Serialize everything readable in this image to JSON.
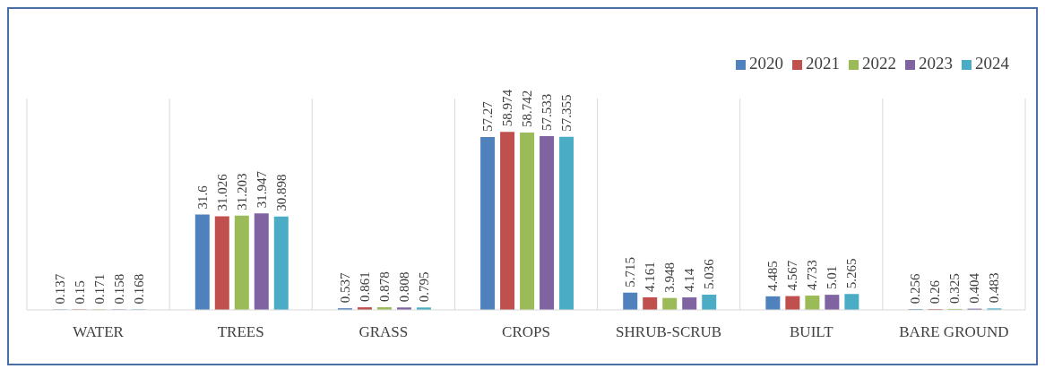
{
  "chart_data": {
    "type": "bar",
    "categories": [
      "WATER",
      "TREES",
      "GRASS",
      "CROPS",
      "SHRUB-SCRUB",
      "BUILT",
      "BARE GROUND"
    ],
    "series": [
      {
        "name": "2020",
        "color": "#4f81bd",
        "values": [
          0.137,
          31.6,
          0.537,
          57.27,
          5.715,
          4.485,
          0.256
        ]
      },
      {
        "name": "2021",
        "color": "#c0504d",
        "values": [
          0.15,
          31.026,
          0.861,
          58.974,
          4.161,
          4.567,
          0.26
        ]
      },
      {
        "name": "2022",
        "color": "#9bbb59",
        "values": [
          0.171,
          31.203,
          0.878,
          58.742,
          3.948,
          4.733,
          0.325
        ]
      },
      {
        "name": "2023",
        "color": "#8064a2",
        "values": [
          0.158,
          31.947,
          0.808,
          57.533,
          4.14,
          5.01,
          0.404
        ]
      },
      {
        "name": "2024",
        "color": "#4bacc6",
        "values": [
          0.168,
          30.898,
          0.795,
          57.355,
          5.036,
          5.265,
          0.483
        ]
      }
    ],
    "ylim": [
      0,
      70
    ],
    "tick_labels": "x",
    "grid": "x",
    "legend": "top right",
    "data_labels": true
  }
}
